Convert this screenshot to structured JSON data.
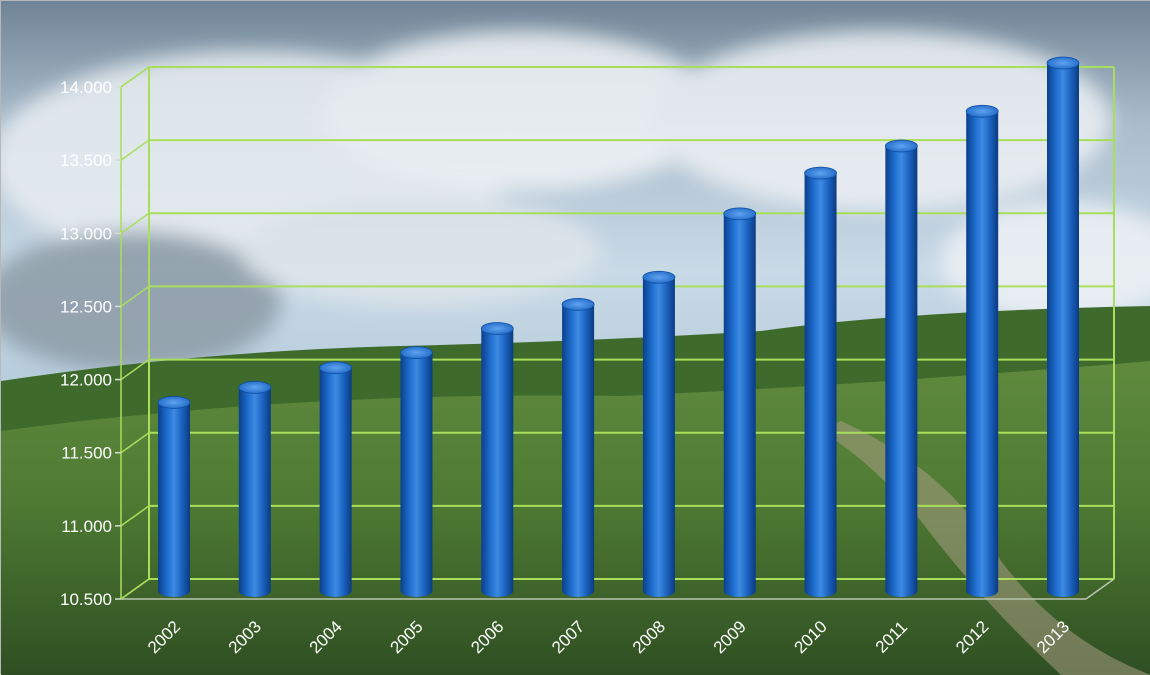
{
  "chart_data": {
    "type": "bar",
    "title": "",
    "xlabel": "",
    "ylabel": "",
    "categories": [
      "2002",
      "2003",
      "2004",
      "2005",
      "2006",
      "2007",
      "2008",
      "2009",
      "2010",
      "2011",
      "2012",
      "2013"
    ],
    "values": [
      11750,
      11850,
      11980,
      12080,
      12240,
      12400,
      12580,
      13000,
      13270,
      13450,
      13680,
      14000
    ],
    "ylim": [
      10500,
      14000
    ],
    "yticks": [
      10500,
      11000,
      11500,
      12000,
      12500,
      13000,
      13500,
      14000
    ],
    "ytick_labels": [
      "10.500",
      "11.000",
      "11.500",
      "12.000",
      "12.500",
      "13.000",
      "13.500",
      "14.000"
    ],
    "grid": true,
    "legend": "none",
    "bar_shape": "cylinder",
    "colors": {
      "bar": "#1f6fd0",
      "bar_dark": "#0b3f8c",
      "bar_light": "#5fa3f0",
      "gridline": "#a9de5a",
      "label": "#ffffff"
    }
  }
}
